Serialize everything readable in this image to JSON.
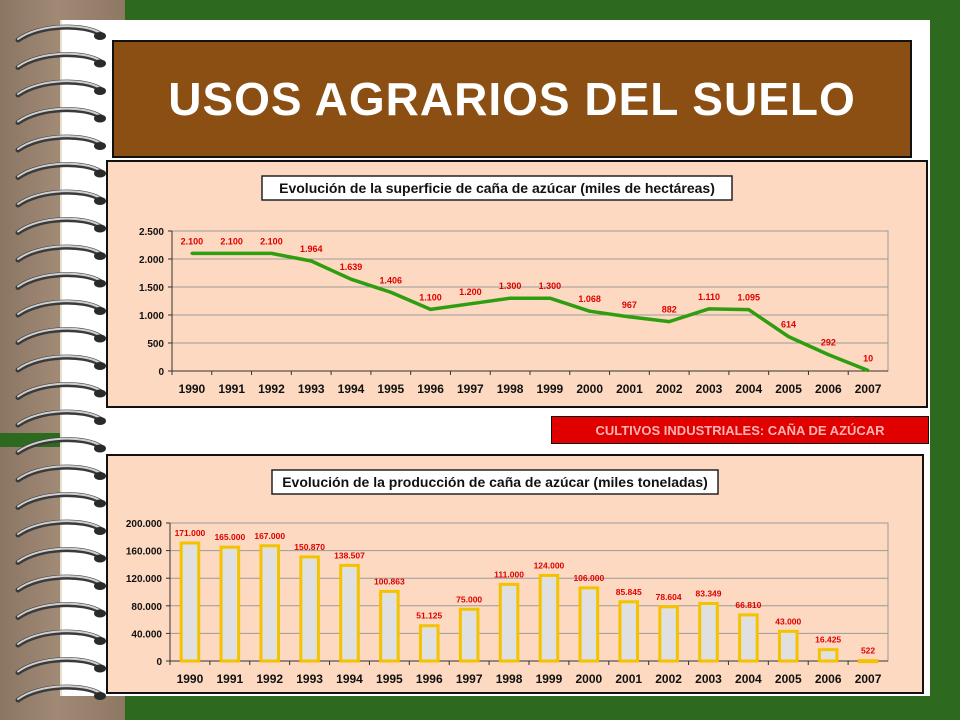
{
  "slide": {
    "title": "USOS AGRARIOS DEL SUELO",
    "badge": "CULTIVOS INDUSTRIALES: CAÑA DE AZÚCAR"
  },
  "colors": {
    "line": "#2e9e10",
    "bar_border": "#f5c200",
    "bar_fill": "#e0e0e0",
    "label": "#e00000",
    "panel": "#fcd9c0"
  },
  "chart_data": [
    {
      "type": "line",
      "title": "Evolución  de la superficie de caña de azúcar (miles de hectáreas)",
      "categories": [
        "1990",
        "1991",
        "1992",
        "1993",
        "1994",
        "1995",
        "1996",
        "1997",
        "1998",
        "1999",
        "2000",
        "2001",
        "2002",
        "2003",
        "2004",
        "2005",
        "2006",
        "2007"
      ],
      "values": [
        2100,
        2100,
        2100,
        1964,
        1639,
        1406,
        1100,
        1200,
        1300,
        1300,
        1068,
        967,
        882,
        1110,
        1095,
        614,
        292,
        10
      ],
      "data_labels": [
        "2.100",
        "2.100",
        "2.100",
        "1.964",
        "1.639",
        "1.406",
        "1.100",
        "1.200",
        "1.300",
        "1.300",
        "1.068",
        "967",
        "882",
        "1.110",
        "1.095",
        "614",
        "292",
        "10"
      ],
      "yticks": [
        0,
        500,
        1000,
        1500,
        2000,
        2500
      ],
      "ytick_labels": [
        "0",
        "500",
        "1.000",
        "1.500",
        "2.000",
        "2.500"
      ],
      "ylim": [
        0,
        2500
      ],
      "grid": true
    },
    {
      "type": "bar",
      "title": "Evolución de la producción de caña de azúcar (miles toneladas)",
      "categories": [
        "1990",
        "1991",
        "1992",
        "1993",
        "1994",
        "1995",
        "1996",
        "1997",
        "1998",
        "1999",
        "2000",
        "2001",
        "2002",
        "2003",
        "2004",
        "2005",
        "2006",
        "2007"
      ],
      "values": [
        171000,
        165000,
        167000,
        150870,
        138507,
        100863,
        51125,
        75000,
        111000,
        124000,
        106000,
        85845,
        78604,
        83349,
        66810,
        43000,
        16425,
        522
      ],
      "data_labels": [
        "171.000",
        "165.000",
        "167.000",
        "150.870",
        "138.507",
        "100.863",
        "51.125",
        "75.000",
        "111.000",
        "124.000",
        "106.000",
        "85.845",
        "78.604",
        "83.349",
        "66.810",
        "43.000",
        "16.425",
        "522"
      ],
      "yticks": [
        0,
        40000,
        80000,
        120000,
        160000,
        200000
      ],
      "ytick_labels": [
        "0",
        "40.000",
        "80.000",
        "120.000",
        "160.000",
        "200.000"
      ],
      "ylim": [
        0,
        200000
      ],
      "grid": true
    }
  ]
}
